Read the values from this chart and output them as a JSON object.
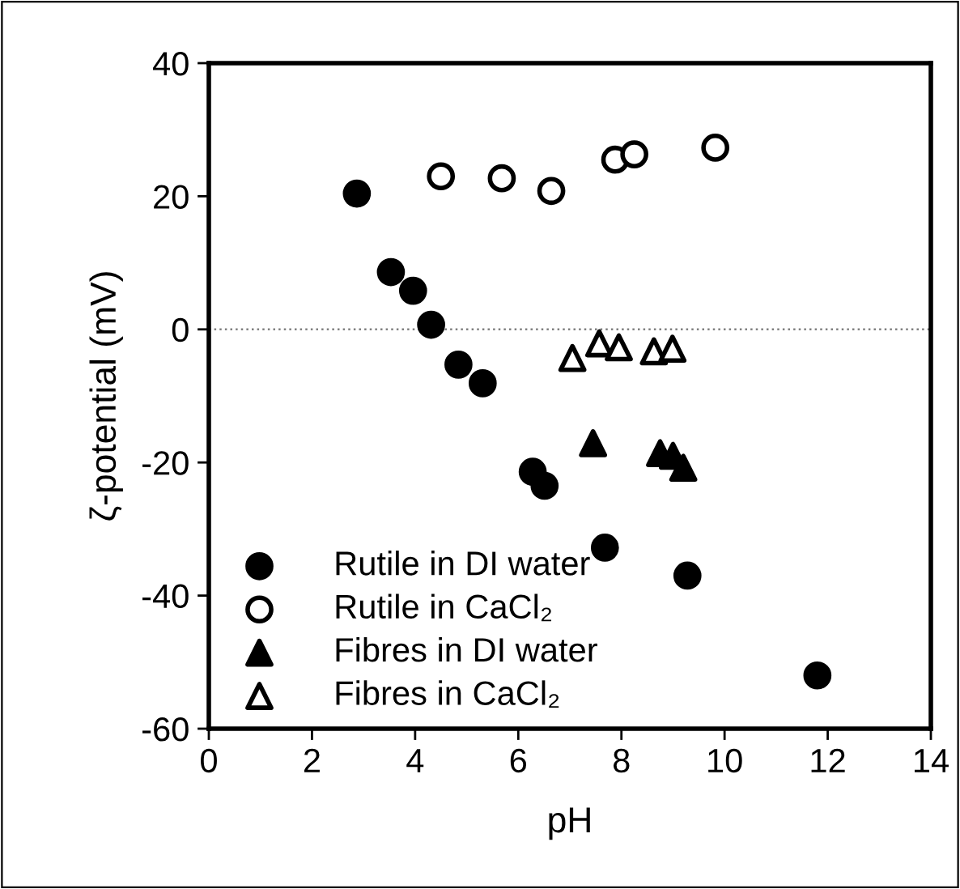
{
  "chart_data": {
    "type": "scatter",
    "xlabel": "pH",
    "ylabel": "ζ-potential (mV)",
    "xlim": [
      0,
      14
    ],
    "ylim": [
      -60,
      40
    ],
    "xticks": [
      0,
      2,
      4,
      6,
      8,
      10,
      12,
      14
    ],
    "yticks": [
      -60,
      -40,
      -20,
      0,
      20,
      40
    ],
    "grid": false,
    "legend": "bottom left",
    "ref_lines": [
      {
        "axis": "y",
        "value": 0,
        "line_style": "dotted",
        "color": "#808080"
      }
    ],
    "series": [
      {
        "name": "Rutile in DI water",
        "color": "#000000",
        "marker": "circle",
        "x": [
          2.87,
          3.53,
          3.96,
          4.31,
          4.84,
          5.31,
          6.28,
          6.51,
          7.68,
          9.28,
          11.8
        ],
        "values": [
          20.4,
          8.6,
          5.8,
          0.7,
          -5.3,
          -8.1,
          -21.4,
          -23.5,
          -32.8,
          -37.0,
          -52.0
        ]
      },
      {
        "name": "Rutile in CaCl₂",
        "color": "#000000",
        "marker": "circle",
        "x": [
          4.5,
          5.68,
          6.64,
          7.88,
          8.25,
          9.82
        ],
        "values": [
          23.0,
          22.7,
          20.8,
          25.5,
          26.3,
          27.3
        ]
      },
      {
        "name": "Fibres in DI water",
        "color": "#000000",
        "marker": "triangle",
        "x": [
          7.45,
          8.75,
          9.0,
          9.2
        ],
        "values": [
          -17.1,
          -18.6,
          -19.0,
          -20.8
        ]
      },
      {
        "name": "Fibres in CaCl₂",
        "color": "#000000",
        "marker": "triangle",
        "x": [
          7.05,
          7.57,
          7.95,
          8.63,
          8.99
        ],
        "values": [
          -4.3,
          -2.1,
          -2.7,
          -3.3,
          -2.9
        ]
      }
    ]
  }
}
